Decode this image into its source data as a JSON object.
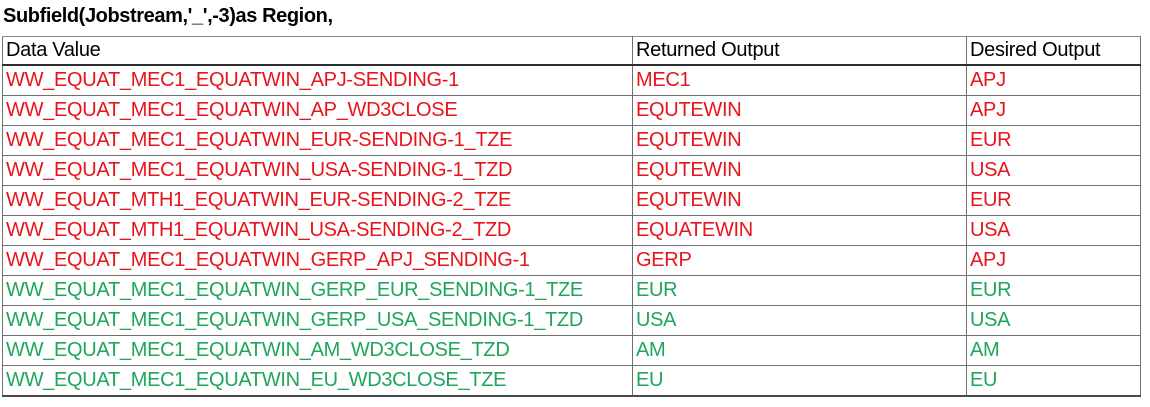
{
  "title": "Subfield(Jobstream,'_',-3)as Region,",
  "table": {
    "columns": [
      "Data Value",
      "Returned Output",
      "Desired Output"
    ],
    "rows": [
      {
        "data_value": "WW_EQUAT_MEC1_EQUATWIN_APJ-SENDING-1",
        "returned": "MEC1",
        "desired": "APJ",
        "status": "mismatch"
      },
      {
        "data_value": "WW_EQUAT_MEC1_EQUATWIN_AP_WD3CLOSE",
        "returned": "EQUTEWIN",
        "desired": "APJ",
        "status": "mismatch"
      },
      {
        "data_value": "WW_EQUAT_MEC1_EQUATWIN_EUR-SENDING-1_TZE",
        "returned": "EQUTEWIN",
        "desired": "EUR",
        "status": "mismatch"
      },
      {
        "data_value": "WW_EQUAT_MEC1_EQUATWIN_USA-SENDING-1_TZD",
        "returned": "EQUTEWIN",
        "desired": "USA",
        "status": "mismatch"
      },
      {
        "data_value": "WW_EQUAT_MTH1_EQUATWIN_EUR-SENDING-2_TZE",
        "returned": "EQUTEWIN",
        "desired": "EUR",
        "status": "mismatch"
      },
      {
        "data_value": "WW_EQUAT_MTH1_EQUATWIN_USA-SENDING-2_TZD",
        "returned": "EQUATEWIN",
        "desired": "USA",
        "status": "mismatch"
      },
      {
        "data_value": "WW_EQUAT_MEC1_EQUATWIN_GERP_APJ_SENDING-1",
        "returned": "GERP",
        "desired": "APJ",
        "status": "mismatch"
      },
      {
        "data_value": "WW_EQUAT_MEC1_EQUATWIN_GERP_EUR_SENDING-1_TZE",
        "returned": "EUR",
        "desired": "EUR",
        "status": "match"
      },
      {
        "data_value": "WW_EQUAT_MEC1_EQUATWIN_GERP_USA_SENDING-1_TZD",
        "returned": "USA",
        "desired": "USA",
        "status": "match"
      },
      {
        "data_value": "WW_EQUAT_MEC1_EQUATWIN_AM_WD3CLOSE_TZD",
        "returned": "AM",
        "desired": "AM",
        "status": "match"
      },
      {
        "data_value": "WW_EQUAT_MEC1_EQUATWIN_EU_WD3CLOSE_TZE",
        "returned": "EU",
        "desired": "EU",
        "status": "match"
      }
    ]
  },
  "colors": {
    "mismatch_text": "#e8141c",
    "match_text": "#1ea65a",
    "header_text": "#000000",
    "border": "#6f6f6f"
  }
}
